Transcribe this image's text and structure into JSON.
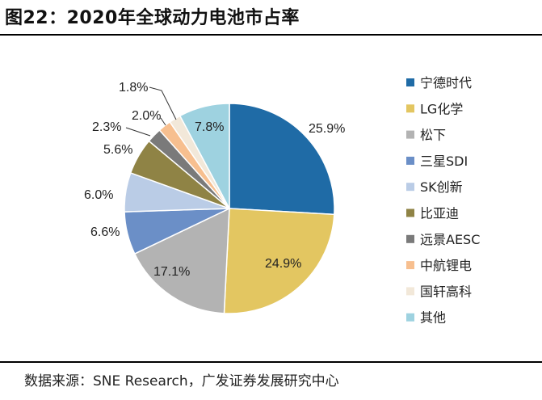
{
  "title": "图22：2020年全球动力电池市占率",
  "source": "数据来源：SNE Research，广发证券发展研究中心",
  "chart_data": {
    "type": "pie",
    "title": "2020年全球动力电池市占率",
    "start_angle_deg": 0,
    "direction": "clockwise",
    "legend_position": "right",
    "slices": [
      {
        "name": "宁德时代",
        "value": 25.9,
        "label": "25.9%",
        "color": "#1F6BA6"
      },
      {
        "name": "LG化学",
        "value": 24.9,
        "label": "24.9%",
        "color": "#E3C661"
      },
      {
        "name": "松下",
        "value": 17.1,
        "label": "17.1%",
        "color": "#B3B3B3"
      },
      {
        "name": "三星SDI",
        "value": 6.6,
        "label": "6.6%",
        "color": "#6B8FC7"
      },
      {
        "name": "SK创新",
        "value": 6.0,
        "label": "6.0%",
        "color": "#BACCE6"
      },
      {
        "name": "比亚迪",
        "value": 5.6,
        "label": "5.6%",
        "color": "#8F8345"
      },
      {
        "name": "远景AESC",
        "value": 2.3,
        "label": "2.3%",
        "color": "#7A7A7A"
      },
      {
        "name": "中航锂电",
        "value": 2.0,
        "label": "2.0%",
        "color": "#F7BF8F"
      },
      {
        "name": "国轩高科",
        "value": 1.8,
        "label": "1.8%",
        "color": "#F2E8D9"
      },
      {
        "name": "其他",
        "value": 7.8,
        "label": "7.8%",
        "color": "#9ED2E0"
      }
    ]
  }
}
